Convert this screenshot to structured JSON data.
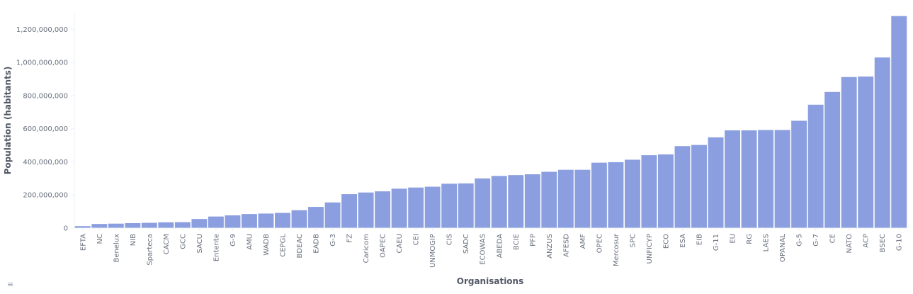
{
  "chart_data": {
    "type": "bar",
    "xlabel": "Organisations",
    "ylabel": "Population (habitants)",
    "ylim": [
      0,
      1300000000
    ],
    "y_ticks": [
      0,
      200000000,
      400000000,
      600000000,
      800000000,
      1000000000,
      1200000000
    ],
    "y_tick_labels": [
      "0",
      "200,000,000",
      "400,000,000",
      "600,000,000",
      "800,000,000",
      "1,000,000,000",
      "1,200,000,000"
    ],
    "grid": false,
    "bar_color": "#8b9fe0",
    "categories": [
      "EFTA",
      "NC",
      "Benelux",
      "NIB",
      "Sparteca",
      "CACM",
      "GCC",
      "SACU",
      "Entente",
      "G-9",
      "AMU",
      "WADB",
      "CEPGL",
      "BDEAC",
      "EADB",
      "G-3",
      "FZ",
      "Caricom",
      "OAPEC",
      "CAEU",
      "CEI",
      "UNMOGIP",
      "CIS",
      "SADC",
      "ECOWAS",
      "ABEDA",
      "BCIE",
      "PFP",
      "ANZUS",
      "AFESD",
      "AMF",
      "OPEC",
      "Mercosur",
      "SPC",
      "UNFICYP",
      "ECO",
      "ESA",
      "EIB",
      "G-11",
      "EU",
      "RG",
      "LAES",
      "OPANAL",
      "G-5",
      "G-7",
      "CE",
      "NATO",
      "ACP",
      "BSEC",
      "G-10"
    ],
    "values": [
      12000000,
      25000000,
      27000000,
      30000000,
      32000000,
      35000000,
      36000000,
      55000000,
      70000000,
      77000000,
      85000000,
      88000000,
      92000000,
      108000000,
      128000000,
      155000000,
      205000000,
      215000000,
      222000000,
      238000000,
      245000000,
      250000000,
      268000000,
      270000000,
      300000000,
      315000000,
      320000000,
      325000000,
      340000000,
      352000000,
      352000000,
      395000000,
      398000000,
      413000000,
      440000000,
      445000000,
      495000000,
      502000000,
      548000000,
      590000000,
      590000000,
      592000000,
      592000000,
      648000000,
      745000000,
      822000000,
      912000000,
      915000000,
      1030000000,
      1280000000
    ]
  },
  "legend_toggle": {
    "icon": "list-icon"
  }
}
